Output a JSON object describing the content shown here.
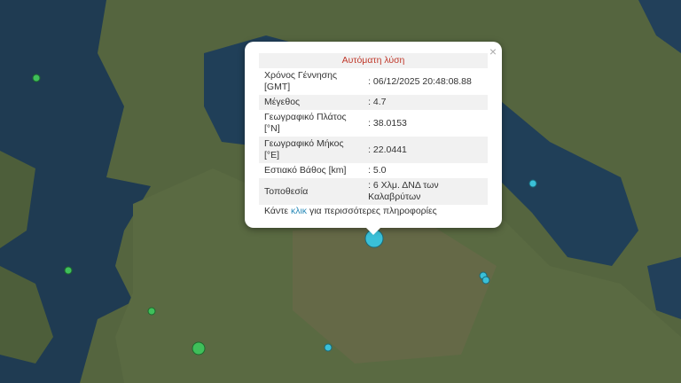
{
  "popup": {
    "title": "Αυτόματη λύση",
    "rows": [
      {
        "label": "Χρόνος Γέννησης [GMT]",
        "value": ": 06/12/2025 20:48:08.88"
      },
      {
        "label": "Μέγεθος",
        "value": ": 4.7"
      },
      {
        "label": "Γεωγραφικό Πλάτος [°N]",
        "value": ": 38.0153"
      },
      {
        "label": "Γεωγραφικό Μήκος [°E]",
        "value": ": 22.0441"
      },
      {
        "label": "Εστιακό Βάθος [km]",
        "value": ": 5.0"
      },
      {
        "label": "Τοποθεσία",
        "value": ": 6 Χλμ. ΔΝΔ των Καλαβρύτων"
      }
    ],
    "footer_pre": "Κάντε ",
    "footer_link": "κλικ",
    "footer_post": " για περισσότερες πληροφορίες",
    "close": "×"
  },
  "colors": {
    "sea": "#1f3b52",
    "land": "#56663f",
    "marker_green": "#3fbf5a",
    "marker_cyan": "#3ac0d8",
    "title": "#c0392b"
  }
}
